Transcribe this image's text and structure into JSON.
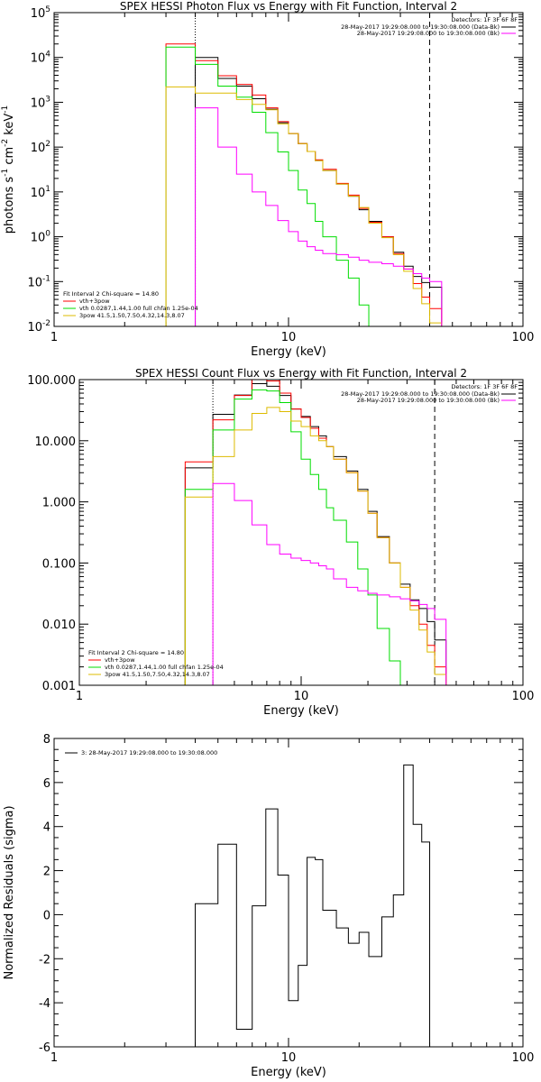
{
  "chart_data": [
    {
      "type": "line",
      "id": "photon",
      "title": "SPEX HESSI Photon Flux vs Energy with Fit Function, Interval 2",
      "xlabel": "Energy (keV)",
      "ylabel": "photons s",
      "ylabel_sup1": "-1",
      "ylabel_mid": " cm",
      "ylabel_sup2": "-2",
      "ylabel_end": " keV",
      "ylabel_sup3": "-1",
      "xscale": "log",
      "yscale": "log",
      "xlim": [
        1,
        100
      ],
      "ylim": [
        0.01,
        100000
      ],
      "xticks": [
        1,
        10,
        100
      ],
      "xtick_labels": [
        "1",
        "10",
        "100"
      ],
      "yticks": [
        0.01,
        0.1,
        1,
        10,
        100,
        1000,
        10000,
        100000
      ],
      "ytick_labels": [
        {
          "base": "10",
          "exp": "-2"
        },
        {
          "base": "10",
          "exp": "-1"
        },
        {
          "base": "10",
          "exp": "0"
        },
        {
          "base": "10",
          "exp": "1"
        },
        {
          "base": "10",
          "exp": "2"
        },
        {
          "base": "10",
          "exp": "3"
        },
        {
          "base": "10",
          "exp": "4"
        },
        {
          "base": "10",
          "exp": "5"
        }
      ],
      "vlines": [
        {
          "x": 4,
          "style": "dotted"
        },
        {
          "x": 40,
          "style": "dashed"
        }
      ],
      "top_right_legend": {
        "title": "Detectors: 1F 3F 6F 8F",
        "entries": [
          {
            "label": "28-May-2017 19:29:08.000 to 19:30:08.000 (Data-Bk)",
            "color": "#000000"
          },
          {
            "label": "28-May-2017 19:29:08.000 to 19:30:08.000 (Bk)",
            "color": "#ff00ff"
          }
        ]
      },
      "bottom_left_legend": {
        "title": "Fit Interval 2   Chi-square = 14.80",
        "entries": [
          {
            "label": "vth+3pow",
            "color": "#ff0000"
          },
          {
            "label": "vth 0.0287,1.44,1.00  full chfan 1.25e-04",
            "color": "#00dd00"
          },
          {
            "label": "3pow 41.5,1.50,7.50,4.32,14.3,8.07",
            "color": "#ddbb00"
          }
        ]
      },
      "edges": [
        3,
        4,
        5,
        6,
        7,
        8,
        9,
        10,
        11,
        12,
        13,
        14,
        16,
        18,
        20,
        22,
        25,
        28,
        31,
        34,
        37,
        40,
        45
      ],
      "series": [
        {
          "key": "data",
          "color": "#000000",
          "values": [
            null,
            10000,
            3400,
            2300,
            1200,
            700,
            350,
            200,
            120,
            80,
            50,
            30,
            15,
            8,
            4,
            2.2,
            1.0,
            0.45,
            0.22,
            0.13,
            0.095,
            0.075
          ]
        },
        {
          "key": "total",
          "color": "#ff0000",
          "values": [
            20000,
            8500,
            3900,
            2500,
            1450,
            750,
            370,
            200,
            120,
            80,
            52,
            32,
            15.5,
            8.5,
            4.3,
            2.1,
            1.0,
            0.42,
            0.19,
            0.09,
            0.045,
            0.025
          ]
        },
        {
          "key": "vth",
          "color": "#00dd00",
          "values": [
            17000,
            7000,
            2300,
            1300,
            600,
            210,
            78,
            30,
            11,
            5.5,
            2.2,
            1.0,
            0.3,
            0.12,
            0.03,
            null,
            null,
            null,
            null,
            null,
            null,
            null
          ]
        },
        {
          "key": "pow",
          "color": "#ddbb00",
          "values": [
            2200,
            1600,
            1600,
            1150,
            900,
            680,
            330,
            200,
            120,
            80,
            50,
            30,
            15,
            8,
            4.5,
            2.0,
            0.95,
            0.4,
            0.17,
            0.07,
            0.032,
            0.012
          ]
        },
        {
          "key": "bk",
          "color": "#ff00ff",
          "values": [
            null,
            750,
            100,
            25,
            10,
            5,
            2.3,
            1.3,
            0.8,
            0.6,
            0.5,
            0.42,
            0.4,
            0.35,
            0.3,
            0.27,
            0.25,
            0.22,
            0.19,
            0.15,
            0.12,
            0.1
          ]
        }
      ]
    },
    {
      "type": "line",
      "id": "count",
      "title": "SPEX HESSI Count Flux vs Energy with Fit Function, Interval 2",
      "xlabel": "Energy (keV)",
      "ylabel": "",
      "xscale": "log",
      "yscale": "log",
      "xlim": [
        1,
        100
      ],
      "ylim": [
        0.001,
        100
      ],
      "xticks": [
        1,
        10,
        100
      ],
      "xtick_labels": [
        "1",
        "10",
        "100"
      ],
      "yticks": [
        0.001,
        0.01,
        0.1,
        1,
        10,
        100
      ],
      "ytick_labels": [
        "0.001",
        "0.010",
        "0.100",
        "1.000",
        "10.000",
        "100.000"
      ],
      "vlines": [
        {
          "x": 4,
          "style": "dotted"
        },
        {
          "x": 40,
          "style": "dashed"
        }
      ],
      "top_right_legend": {
        "title": "Detectors: 1F 3F 6F 8F",
        "entries": [
          {
            "label": "28-May-2017 19:29:08.000 to 19:30:08.000 (Data-Bk)",
            "color": "#000000"
          },
          {
            "label": "28-May-2017 19:29:08.000 to 19:30:08.000 (Bk)",
            "color": "#ff00ff"
          }
        ]
      },
      "bottom_left_legend": {
        "title": "Fit Interval 2   Chi-square = 14.80",
        "entries": [
          {
            "label": "vth+3pow",
            "color": "#ff0000"
          },
          {
            "label": "vth 0.0287,1.44,1.00  full chfan 1.25e-04",
            "color": "#00dd00"
          },
          {
            "label": "3pow 41.5,1.50,7.50,4.32,14.3,8.07",
            "color": "#ddbb00"
          }
        ]
      },
      "edges": [
        3,
        4,
        5,
        6,
        7,
        8,
        9,
        10,
        11,
        12,
        13,
        14,
        16,
        18,
        20,
        22,
        25,
        28,
        31,
        34,
        37,
        40,
        45
      ],
      "series": [
        {
          "key": "data",
          "color": "#000000",
          "values": [
            3.6,
            27,
            56,
            86,
            78,
            55,
            33,
            25,
            17,
            12,
            8,
            5.5,
            3.2,
            1.6,
            0.7,
            0.27,
            0.1,
            0.045,
            0.025,
            0.018,
            0.011,
            0.0055
          ]
        },
        {
          "key": "total",
          "color": "#ff0000",
          "values": [
            4.5,
            22,
            55,
            100,
            95,
            60,
            33,
            24,
            16,
            11,
            8,
            5,
            3,
            1.5,
            0.65,
            0.26,
            0.1,
            0.04,
            0.02,
            0.01,
            0.0045,
            0.002
          ]
        },
        {
          "key": "vth",
          "color": "#00dd00",
          "values": [
            1.6,
            15,
            48,
            68,
            65,
            42,
            14,
            5,
            2.8,
            1.6,
            0.8,
            0.5,
            0.22,
            0.08,
            0.03,
            0.0085,
            0.0025,
            null,
            null,
            null,
            null,
            null
          ]
        },
        {
          "key": "pow",
          "color": "#ddbb00",
          "values": [
            1.2,
            5.5,
            15,
            28,
            35,
            30,
            21,
            17,
            12,
            10,
            8,
            5,
            3,
            1.5,
            0.65,
            0.26,
            0.1,
            0.04,
            0.017,
            0.008,
            0.0035,
            0.0015
          ]
        },
        {
          "key": "bk",
          "color": "#ff00ff",
          "values": [
            null,
            2.0,
            1.05,
            0.42,
            0.2,
            0.14,
            0.12,
            0.11,
            0.1,
            0.09,
            0.08,
            0.055,
            0.04,
            0.035,
            0.032,
            0.03,
            0.028,
            0.026,
            0.024,
            0.021,
            0.018,
            0.012
          ]
        }
      ]
    },
    {
      "type": "line",
      "id": "resid",
      "title": "",
      "xlabel": "Energy (keV)",
      "ylabel": "Normalized Residuals (sigma)",
      "xscale": "log",
      "yscale": "linear",
      "xlim": [
        1,
        100
      ],
      "ylim": [
        -6,
        8
      ],
      "xticks": [
        1,
        10,
        100
      ],
      "xtick_labels": [
        "1",
        "10",
        "100"
      ],
      "yticks": [
        -6,
        -4,
        -2,
        0,
        2,
        4,
        6,
        8
      ],
      "ytick_labels": [
        "-6",
        "-4",
        "-2",
        "0",
        "2",
        "4",
        "6",
        "8"
      ],
      "legend": {
        "entries": [
          {
            "label": "3: 28-May-2017 19:29:08.000 to 19:30:08.000",
            "color": "#000000"
          }
        ]
      },
      "edges": [
        4,
        5,
        6,
        7,
        8,
        9,
        10,
        11,
        12,
        13,
        14,
        16,
        18,
        20,
        22,
        25,
        28,
        31,
        34,
        37,
        40
      ],
      "series": [
        {
          "key": "resid",
          "color": "#000000",
          "values": [
            0.5,
            3.2,
            -5.2,
            0.4,
            4.8,
            1.8,
            -3.9,
            -2.3,
            2.6,
            2.5,
            0.2,
            -0.6,
            -1.3,
            -0.8,
            -1.9,
            -0.1,
            0.9,
            6.8,
            4.1,
            3.3
          ]
        }
      ]
    }
  ]
}
